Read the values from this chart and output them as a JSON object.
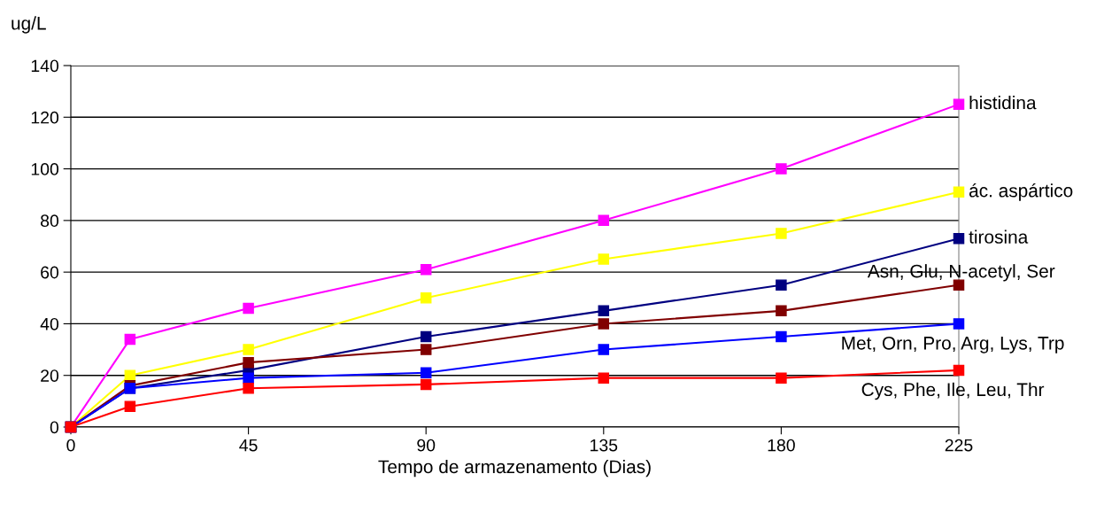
{
  "chart_data": {
    "type": "line",
    "ylabel": "ug/L",
    "xlabel": "Tempo de armazenamento (Dias)",
    "x": [
      0,
      15,
      45,
      90,
      135,
      180,
      225
    ],
    "series": [
      {
        "name": "histidina",
        "color": "#ff00ff",
        "values": [
          0,
          34,
          46,
          61,
          80,
          100,
          125
        ]
      },
      {
        "name": "ác. aspártico",
        "color": "#ffff00",
        "values": [
          0,
          20,
          30,
          50,
          65,
          75,
          91
        ]
      },
      {
        "name": "tirosina",
        "color": "#000080",
        "values": [
          0,
          15,
          22,
          35,
          45,
          55,
          73
        ]
      },
      {
        "name": "Asn, Glu, N-acetyl, Ser",
        "color": "#800000",
        "values": [
          0,
          16,
          25,
          30,
          40,
          45,
          55
        ]
      },
      {
        "name": "Met, Orn, Pro, Arg, Lys, Trp",
        "color": "#0000ff",
        "values": [
          0,
          15,
          19,
          21,
          30,
          35,
          40
        ]
      },
      {
        "name": "Cys, Phe, Ile, Leu, Thr",
        "color": "#ff0000",
        "values": [
          0,
          8,
          15,
          16.5,
          19,
          19,
          22
        ]
      }
    ],
    "xlim": [
      0,
      225
    ],
    "xticks": [
      0,
      45,
      90,
      135,
      180,
      225
    ],
    "ylim": [
      0,
      140
    ],
    "yticks": [
      0,
      20,
      40,
      60,
      80,
      100,
      120,
      140
    ],
    "grid": "y",
    "marker": "square",
    "line_style": "solid",
    "legend": false
  }
}
